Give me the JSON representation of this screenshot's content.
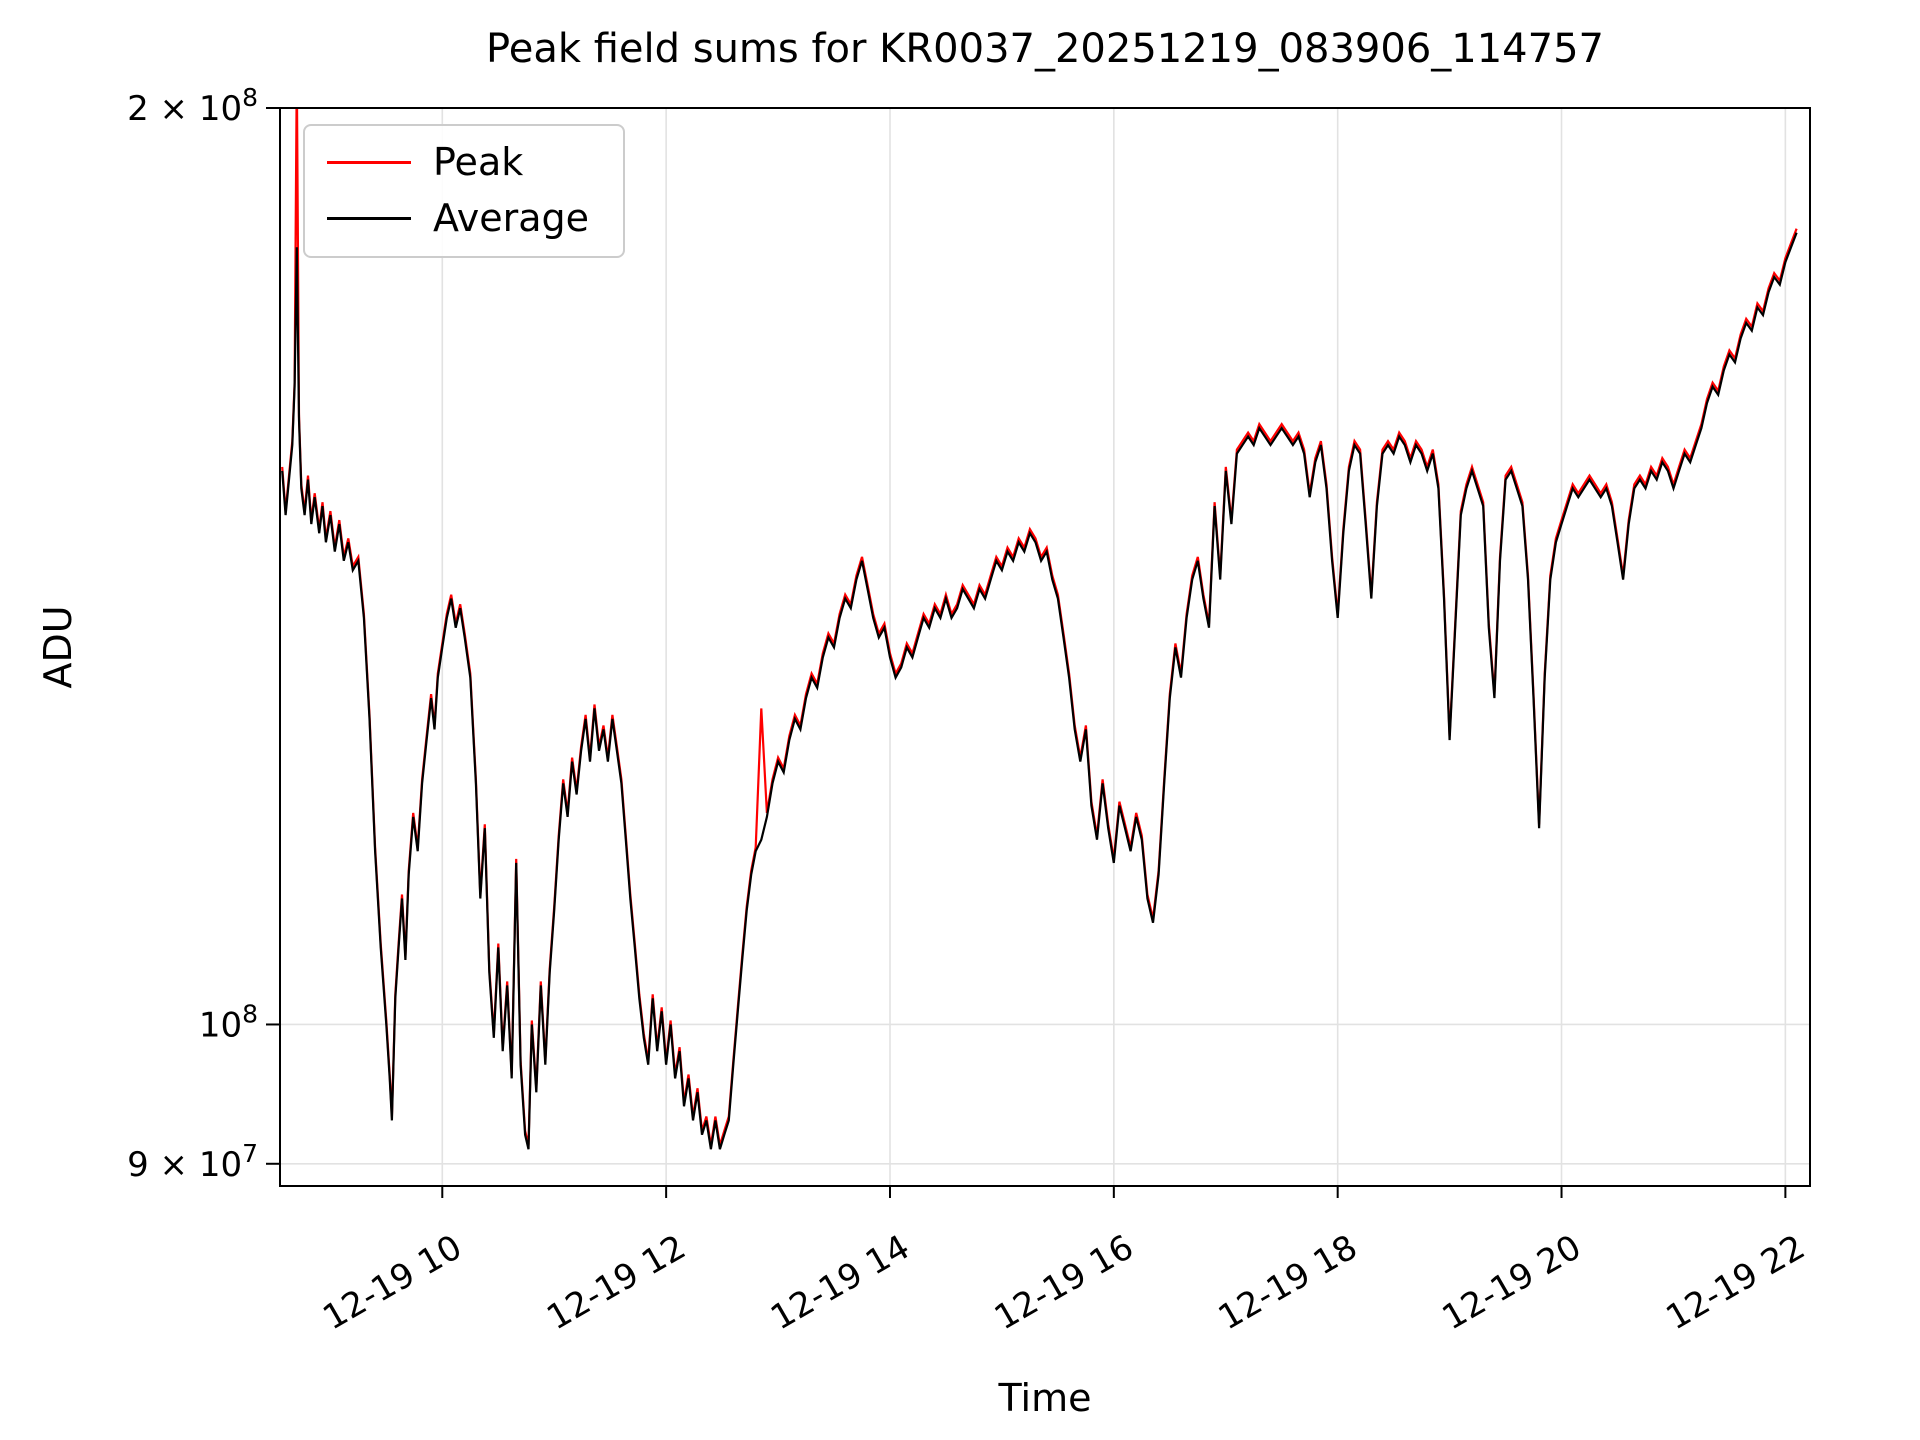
{
  "chart_data": {
    "type": "line",
    "title": "Peak field sums for KR0037_20251219_083906_114757",
    "xlabel": "Time",
    "ylabel": "ADU",
    "yscale": "log",
    "grid": true,
    "legend_position": "upper-left",
    "x_unit": "hours on 12-19",
    "x_range": [
      8.55,
      22.22
    ],
    "y_range": [
      88500000,
      200000000
    ],
    "unit_multiplier": 100000000,
    "x_ticks": [
      {
        "label": "12-19 10",
        "hour": 10
      },
      {
        "label": "12-19 12",
        "hour": 12
      },
      {
        "label": "12-19 14",
        "hour": 14
      },
      {
        "label": "12-19 16",
        "hour": 16
      },
      {
        "label": "12-19 18",
        "hour": 18
      },
      {
        "label": "12-19 20",
        "hour": 20
      },
      {
        "label": "12-19 22",
        "hour": 22
      }
    ],
    "y_ticks": [
      {
        "label": "2 × 10",
        "exp": "8",
        "value": 200000000
      },
      {
        "label": "10",
        "exp": "8",
        "value": 100000000
      },
      {
        "label": "9 × 10",
        "exp": "7",
        "value": 90000000
      }
    ],
    "series": [
      {
        "name": "Peak",
        "color": "#ff0000",
        "derived_from_average_factor": 1.003,
        "spike_overrides": [
          [
            8.7,
            2.06
          ],
          [
            12.85,
            1.27
          ]
        ]
      },
      {
        "name": "Average",
        "color": "#000000",
        "points": [
          [
            8.57,
            1.52
          ],
          [
            8.6,
            1.47
          ],
          [
            8.63,
            1.51
          ],
          [
            8.66,
            1.55
          ],
          [
            8.68,
            1.62
          ],
          [
            8.7,
            1.8
          ],
          [
            8.72,
            1.58
          ],
          [
            8.74,
            1.5
          ],
          [
            8.77,
            1.47
          ],
          [
            8.8,
            1.51
          ],
          [
            8.83,
            1.46
          ],
          [
            8.86,
            1.49
          ],
          [
            8.9,
            1.45
          ],
          [
            8.93,
            1.48
          ],
          [
            8.96,
            1.44
          ],
          [
            9.0,
            1.47
          ],
          [
            9.04,
            1.43
          ],
          [
            9.08,
            1.46
          ],
          [
            9.12,
            1.42
          ],
          [
            9.16,
            1.44
          ],
          [
            9.2,
            1.41
          ],
          [
            9.25,
            1.42
          ],
          [
            9.3,
            1.36
          ],
          [
            9.35,
            1.26
          ],
          [
            9.4,
            1.14
          ],
          [
            9.45,
            1.06
          ],
          [
            9.5,
            1.0
          ],
          [
            9.53,
            0.96
          ],
          [
            9.55,
            0.93
          ],
          [
            9.58,
            1.02
          ],
          [
            9.61,
            1.06
          ],
          [
            9.64,
            1.1
          ],
          [
            9.67,
            1.05
          ],
          [
            9.7,
            1.12
          ],
          [
            9.74,
            1.17
          ],
          [
            9.78,
            1.14
          ],
          [
            9.82,
            1.2
          ],
          [
            9.86,
            1.24
          ],
          [
            9.9,
            1.28
          ],
          [
            9.93,
            1.25
          ],
          [
            9.96,
            1.3
          ],
          [
            10.0,
            1.33
          ],
          [
            10.04,
            1.36
          ],
          [
            10.08,
            1.38
          ],
          [
            10.12,
            1.35
          ],
          [
            10.16,
            1.37
          ],
          [
            10.2,
            1.34
          ],
          [
            10.25,
            1.3
          ],
          [
            10.3,
            1.2
          ],
          [
            10.34,
            1.1
          ],
          [
            10.38,
            1.16
          ],
          [
            10.42,
            1.04
          ],
          [
            10.46,
            0.99
          ],
          [
            10.5,
            1.06
          ],
          [
            10.54,
            0.98
          ],
          [
            10.58,
            1.03
          ],
          [
            10.62,
            0.96
          ],
          [
            10.66,
            1.13
          ],
          [
            10.7,
            0.97
          ],
          [
            10.74,
            0.92
          ],
          [
            10.77,
            0.91
          ],
          [
            10.8,
            1.0
          ],
          [
            10.84,
            0.95
          ],
          [
            10.88,
            1.03
          ],
          [
            10.92,
            0.97
          ],
          [
            10.96,
            1.04
          ],
          [
            11.0,
            1.09
          ],
          [
            11.04,
            1.15
          ],
          [
            11.08,
            1.2
          ],
          [
            11.12,
            1.17
          ],
          [
            11.16,
            1.22
          ],
          [
            11.2,
            1.19
          ],
          [
            11.24,
            1.23
          ],
          [
            11.28,
            1.26
          ],
          [
            11.32,
            1.22
          ],
          [
            11.36,
            1.27
          ],
          [
            11.4,
            1.23
          ],
          [
            11.44,
            1.25
          ],
          [
            11.48,
            1.22
          ],
          [
            11.52,
            1.26
          ],
          [
            11.56,
            1.23
          ],
          [
            11.6,
            1.2
          ],
          [
            11.64,
            1.15
          ],
          [
            11.68,
            1.1
          ],
          [
            11.72,
            1.06
          ],
          [
            11.76,
            1.02
          ],
          [
            11.8,
            0.99
          ],
          [
            11.84,
            0.97
          ],
          [
            11.88,
            1.02
          ],
          [
            11.92,
            0.98
          ],
          [
            11.96,
            1.01
          ],
          [
            12.0,
            0.97
          ],
          [
            12.04,
            1.0
          ],
          [
            12.08,
            0.96
          ],
          [
            12.12,
            0.98
          ],
          [
            12.16,
            0.94
          ],
          [
            12.2,
            0.96
          ],
          [
            12.24,
            0.93
          ],
          [
            12.28,
            0.95
          ],
          [
            12.32,
            0.92
          ],
          [
            12.36,
            0.93
          ],
          [
            12.4,
            0.91
          ],
          [
            12.44,
            0.93
          ],
          [
            12.48,
            0.91
          ],
          [
            12.52,
            0.92
          ],
          [
            12.56,
            0.93
          ],
          [
            12.6,
            0.97
          ],
          [
            12.64,
            1.01
          ],
          [
            12.68,
            1.05
          ],
          [
            12.72,
            1.09
          ],
          [
            12.76,
            1.12
          ],
          [
            12.8,
            1.14
          ],
          [
            12.85,
            1.15
          ],
          [
            12.9,
            1.17
          ],
          [
            12.95,
            1.2
          ],
          [
            13.0,
            1.22
          ],
          [
            13.05,
            1.21
          ],
          [
            13.1,
            1.24
          ],
          [
            13.15,
            1.26
          ],
          [
            13.2,
            1.25
          ],
          [
            13.25,
            1.28
          ],
          [
            13.3,
            1.3
          ],
          [
            13.35,
            1.29
          ],
          [
            13.4,
            1.32
          ],
          [
            13.45,
            1.34
          ],
          [
            13.5,
            1.33
          ],
          [
            13.55,
            1.36
          ],
          [
            13.6,
            1.38
          ],
          [
            13.65,
            1.37
          ],
          [
            13.7,
            1.4
          ],
          [
            13.75,
            1.42
          ],
          [
            13.8,
            1.39
          ],
          [
            13.85,
            1.36
          ],
          [
            13.9,
            1.34
          ],
          [
            13.95,
            1.35
          ],
          [
            14.0,
            1.32
          ],
          [
            14.05,
            1.3
          ],
          [
            14.1,
            1.31
          ],
          [
            14.15,
            1.33
          ],
          [
            14.2,
            1.32
          ],
          [
            14.25,
            1.34
          ],
          [
            14.3,
            1.36
          ],
          [
            14.35,
            1.35
          ],
          [
            14.4,
            1.37
          ],
          [
            14.45,
            1.36
          ],
          [
            14.5,
            1.38
          ],
          [
            14.55,
            1.36
          ],
          [
            14.6,
            1.37
          ],
          [
            14.65,
            1.39
          ],
          [
            14.7,
            1.38
          ],
          [
            14.75,
            1.37
          ],
          [
            14.8,
            1.39
          ],
          [
            14.85,
            1.38
          ],
          [
            14.9,
            1.4
          ],
          [
            14.95,
            1.42
          ],
          [
            15.0,
            1.41
          ],
          [
            15.05,
            1.43
          ],
          [
            15.1,
            1.42
          ],
          [
            15.15,
            1.44
          ],
          [
            15.2,
            1.43
          ],
          [
            15.25,
            1.45
          ],
          [
            15.3,
            1.44
          ],
          [
            15.35,
            1.42
          ],
          [
            15.4,
            1.43
          ],
          [
            15.45,
            1.4
          ],
          [
            15.5,
            1.38
          ],
          [
            15.55,
            1.34
          ],
          [
            15.6,
            1.3
          ],
          [
            15.65,
            1.25
          ],
          [
            15.7,
            1.22
          ],
          [
            15.75,
            1.25
          ],
          [
            15.8,
            1.18
          ],
          [
            15.85,
            1.15
          ],
          [
            15.9,
            1.2
          ],
          [
            15.95,
            1.16
          ],
          [
            16.0,
            1.13
          ],
          [
            16.05,
            1.18
          ],
          [
            16.1,
            1.16
          ],
          [
            16.15,
            1.14
          ],
          [
            16.2,
            1.17
          ],
          [
            16.25,
            1.15
          ],
          [
            16.3,
            1.1
          ],
          [
            16.35,
            1.08
          ],
          [
            16.4,
            1.12
          ],
          [
            16.45,
            1.2
          ],
          [
            16.5,
            1.28
          ],
          [
            16.55,
            1.33
          ],
          [
            16.6,
            1.3
          ],
          [
            16.65,
            1.36
          ],
          [
            16.7,
            1.4
          ],
          [
            16.75,
            1.42
          ],
          [
            16.8,
            1.38
          ],
          [
            16.85,
            1.35
          ],
          [
            16.9,
            1.48
          ],
          [
            16.95,
            1.4
          ],
          [
            17.0,
            1.52
          ],
          [
            17.05,
            1.46
          ],
          [
            17.1,
            1.54
          ],
          [
            17.15,
            1.55
          ],
          [
            17.2,
            1.56
          ],
          [
            17.25,
            1.55
          ],
          [
            17.3,
            1.57
          ],
          [
            17.35,
            1.56
          ],
          [
            17.4,
            1.55
          ],
          [
            17.45,
            1.56
          ],
          [
            17.5,
            1.57
          ],
          [
            17.55,
            1.56
          ],
          [
            17.6,
            1.55
          ],
          [
            17.65,
            1.56
          ],
          [
            17.7,
            1.54
          ],
          [
            17.75,
            1.49
          ],
          [
            17.8,
            1.53
          ],
          [
            17.85,
            1.55
          ],
          [
            17.9,
            1.5
          ],
          [
            17.95,
            1.42
          ],
          [
            18.0,
            1.36
          ],
          [
            18.05,
            1.45
          ],
          [
            18.1,
            1.52
          ],
          [
            18.15,
            1.55
          ],
          [
            18.2,
            1.54
          ],
          [
            18.25,
            1.46
          ],
          [
            18.3,
            1.38
          ],
          [
            18.35,
            1.48
          ],
          [
            18.4,
            1.54
          ],
          [
            18.45,
            1.55
          ],
          [
            18.5,
            1.54
          ],
          [
            18.55,
            1.56
          ],
          [
            18.6,
            1.55
          ],
          [
            18.65,
            1.53
          ],
          [
            18.7,
            1.55
          ],
          [
            18.75,
            1.54
          ],
          [
            18.8,
            1.52
          ],
          [
            18.85,
            1.54
          ],
          [
            18.9,
            1.5
          ],
          [
            18.95,
            1.38
          ],
          [
            19.0,
            1.24
          ],
          [
            19.05,
            1.35
          ],
          [
            19.1,
            1.47
          ],
          [
            19.15,
            1.5
          ],
          [
            19.2,
            1.52
          ],
          [
            19.25,
            1.5
          ],
          [
            19.3,
            1.48
          ],
          [
            19.35,
            1.35
          ],
          [
            19.4,
            1.28
          ],
          [
            19.45,
            1.42
          ],
          [
            19.5,
            1.51
          ],
          [
            19.55,
            1.52
          ],
          [
            19.6,
            1.5
          ],
          [
            19.65,
            1.48
          ],
          [
            19.7,
            1.4
          ],
          [
            19.75,
            1.28
          ],
          [
            19.8,
            1.16
          ],
          [
            19.85,
            1.3
          ],
          [
            19.9,
            1.4
          ],
          [
            19.95,
            1.44
          ],
          [
            20.0,
            1.46
          ],
          [
            20.05,
            1.48
          ],
          [
            20.1,
            1.5
          ],
          [
            20.15,
            1.49
          ],
          [
            20.2,
            1.5
          ],
          [
            20.25,
            1.51
          ],
          [
            20.3,
            1.5
          ],
          [
            20.35,
            1.49
          ],
          [
            20.4,
            1.5
          ],
          [
            20.45,
            1.48
          ],
          [
            20.5,
            1.44
          ],
          [
            20.55,
            1.4
          ],
          [
            20.6,
            1.46
          ],
          [
            20.65,
            1.5
          ],
          [
            20.7,
            1.51
          ],
          [
            20.75,
            1.5
          ],
          [
            20.8,
            1.52
          ],
          [
            20.85,
            1.51
          ],
          [
            20.9,
            1.53
          ],
          [
            20.95,
            1.52
          ],
          [
            21.0,
            1.5
          ],
          [
            21.05,
            1.52
          ],
          [
            21.1,
            1.54
          ],
          [
            21.15,
            1.53
          ],
          [
            21.2,
            1.55
          ],
          [
            21.25,
            1.57
          ],
          [
            21.3,
            1.6
          ],
          [
            21.35,
            1.62
          ],
          [
            21.4,
            1.61
          ],
          [
            21.45,
            1.64
          ],
          [
            21.5,
            1.66
          ],
          [
            21.55,
            1.65
          ],
          [
            21.6,
            1.68
          ],
          [
            21.65,
            1.7
          ],
          [
            21.7,
            1.69
          ],
          [
            21.75,
            1.72
          ],
          [
            21.8,
            1.71
          ],
          [
            21.85,
            1.74
          ],
          [
            21.9,
            1.76
          ],
          [
            21.95,
            1.75
          ],
          [
            22.0,
            1.78
          ],
          [
            22.05,
            1.8
          ],
          [
            22.1,
            1.82
          ]
        ]
      }
    ]
  }
}
